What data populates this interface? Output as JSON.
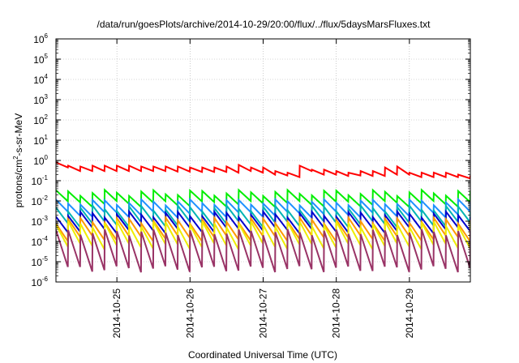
{
  "chart_data": {
    "type": "line",
    "title": "/data/run/goesPlots/archive/2014-10-29/20:00/flux/../flux/5daysMarsFluxes.txt",
    "xlabel": "Coordinated Universal Time (UTC)",
    "ylabel": {
      "base": "protons/cm",
      "sup": "2",
      "rest": "-s-sr-MeV"
    },
    "x_scale": "time",
    "xlim": [
      "2014-10-24 04:00",
      "2014-10-29 20:00"
    ],
    "x_ticks": [
      "2014-10-25",
      "2014-10-26",
      "2014-10-27",
      "2014-10-28",
      "2014-10-29"
    ],
    "y_scale": "log",
    "ylim": [
      1e-06,
      1000000.0
    ],
    "y_ticks": [
      {
        "base": "10",
        "exp": "6"
      },
      {
        "base": "10",
        "exp": "5"
      },
      {
        "base": "10",
        "exp": "4"
      },
      {
        "base": "10",
        "exp": "3"
      },
      {
        "base": "10",
        "exp": "2"
      },
      {
        "base": "10",
        "exp": "1"
      },
      {
        "base": "10",
        "exp": "0"
      },
      {
        "base": "10",
        "exp": "-1"
      },
      {
        "base": "10",
        "exp": "-2"
      },
      {
        "base": "10",
        "exp": "-3"
      },
      {
        "base": "10",
        "exp": "-4"
      },
      {
        "base": "10",
        "exp": "-5"
      },
      {
        "base": "10",
        "exp": "-6"
      }
    ],
    "grid": true,
    "legend": "none",
    "sawtooth_period_hours": 4,
    "series": [
      {
        "color": "#ff0000",
        "x": [
          "2014-10-24 04:00",
          "2014-10-24 08:00",
          "2014-10-24 12:00",
          "2014-10-24 16:00",
          "2014-10-24 20:00",
          "2014-10-25 00:00",
          "2014-10-25 04:00",
          "2014-10-25 08:00",
          "2014-10-25 12:00",
          "2014-10-25 16:00",
          "2014-10-25 20:00",
          "2014-10-26 00:00",
          "2014-10-26 04:00",
          "2014-10-26 08:00",
          "2014-10-26 12:00",
          "2014-10-26 16:00",
          "2014-10-26 20:00",
          "2014-10-27 00:00",
          "2014-10-27 04:00",
          "2014-10-27 08:00",
          "2014-10-27 12:00",
          "2014-10-27 16:00",
          "2014-10-27 20:00",
          "2014-10-28 00:00",
          "2014-10-28 04:00",
          "2014-10-28 08:00",
          "2014-10-28 12:00",
          "2014-10-28 16:00",
          "2014-10-28 20:00",
          "2014-10-29 00:00",
          "2014-10-29 04:00",
          "2014-10-29 08:00",
          "2014-10-29 12:00",
          "2014-10-29 16:00",
          "2014-10-29 20:00"
        ],
        "peak": [
          0.8,
          0.55,
          0.5,
          0.55,
          0.55,
          0.55,
          0.55,
          0.5,
          0.5,
          0.5,
          0.5,
          0.45,
          0.45,
          0.45,
          0.5,
          0.6,
          0.45,
          0.45,
          0.3,
          0.25,
          0.55,
          0.35,
          0.35,
          0.3,
          0.25,
          0.3,
          0.3,
          0.45,
          0.5,
          0.25,
          0.25,
          0.25,
          0.25,
          0.2,
          0.18
        ],
        "trough": [
          0.45,
          0.3,
          0.3,
          0.3,
          0.3,
          0.3,
          0.3,
          0.3,
          0.3,
          0.28,
          0.28,
          0.27,
          0.27,
          0.27,
          0.25,
          0.3,
          0.25,
          0.2,
          0.18,
          0.15,
          0.3,
          0.2,
          0.2,
          0.17,
          0.18,
          0.17,
          0.17,
          0.2,
          0.2,
          0.15,
          0.15,
          0.15,
          0.15,
          0.13,
          0.12
        ]
      },
      {
        "color": "#00ee00",
        "peak": 0.035,
        "trough": 0.01
      },
      {
        "color": "#1e90ff",
        "peak": 0.012,
        "trough": 0.003
      },
      {
        "color": "#00b4b4",
        "peak": 0.006,
        "trough": 0.001
      },
      {
        "color": "#0000cd",
        "peak": 0.003,
        "trough": 0.0005
      },
      {
        "color": "#ff9900",
        "peak": 0.0015,
        "trough": 0.0002
      },
      {
        "color": "#eeee00",
        "peak": 0.001,
        "trough": 8e-05
      },
      {
        "color": "#993366",
        "peak": 0.0004,
        "trough": 6e-06
      }
    ]
  }
}
